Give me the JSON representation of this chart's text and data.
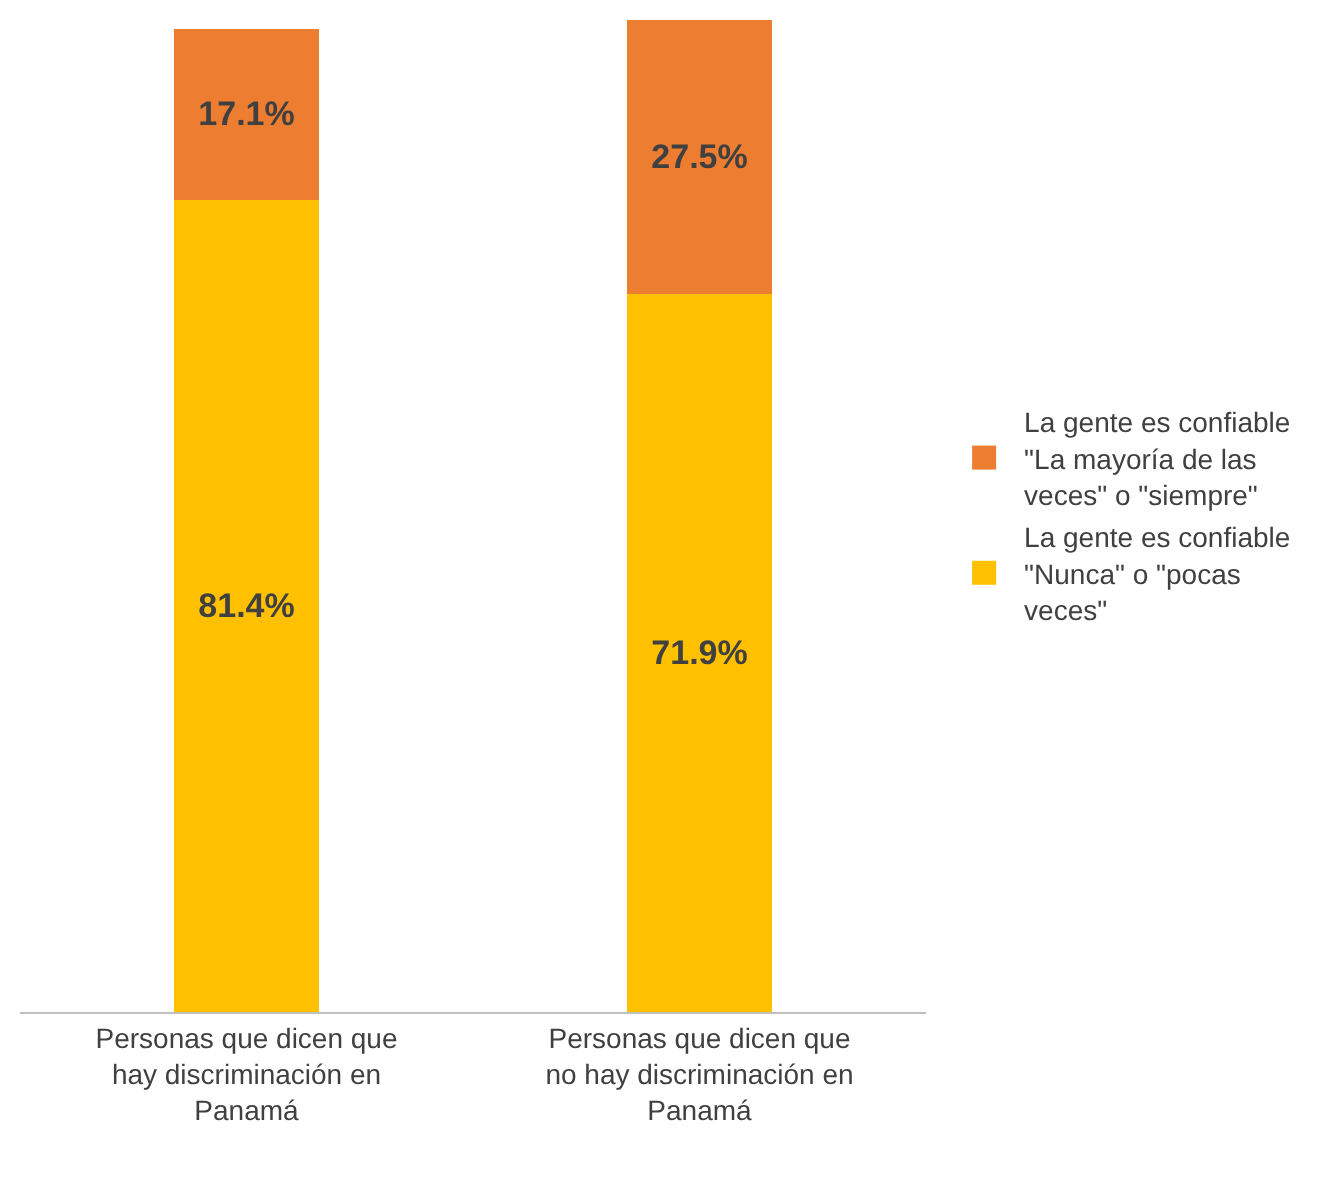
{
  "chart_data": {
    "type": "bar",
    "stacked": true,
    "legend": "right",
    "categories": [
      "Personas que dicen que hay discriminación en Panamá",
      "Personas que dicen que no hay discriminación en Panamá"
    ],
    "series": [
      {
        "name": "La gente es confiable \"Nunca\" o \"pocas veces\"",
        "color": "#ffc000",
        "values": [
          81.4,
          71.9
        ],
        "value_labels": [
          "81.4%",
          "71.9%"
        ]
      },
      {
        "name": "La gente es confiable \"La mayoría de las veces\" o \"siempre\"",
        "color": "#ed7d31",
        "values": [
          17.1,
          27.5
        ],
        "value_labels": [
          "17.1%",
          "27.5%"
        ]
      }
    ]
  }
}
